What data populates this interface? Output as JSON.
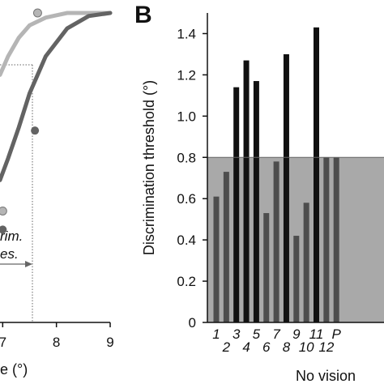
{
  "chart_data": [
    {
      "type": "line",
      "panel_label": "",
      "xlabel": "e (°)",
      "x_ticks": [
        "7",
        "8",
        "9"
      ],
      "xlim": [
        6.95,
        9
      ],
      "ylim": [
        0,
        1
      ],
      "annotation_lines": [
        "rim.",
        "es."
      ],
      "series": [
        {
          "color": "#b5b5b5",
          "curve": [
            [
              6.95,
              0.8
            ],
            [
              7.1,
              0.86
            ],
            [
              7.3,
              0.92
            ],
            [
              7.5,
              0.96
            ],
            [
              7.8,
              0.985
            ],
            [
              8.2,
              1.0
            ],
            [
              9.0,
              1.0
            ]
          ],
          "points": [
            [
              7.0,
              0.36
            ],
            [
              7.65,
              1.0
            ]
          ]
        },
        {
          "color": "#636363",
          "curve": [
            [
              6.95,
              0.46
            ],
            [
              7.1,
              0.53
            ],
            [
              7.3,
              0.63
            ],
            [
              7.5,
              0.74
            ],
            [
              7.8,
              0.86
            ],
            [
              8.2,
              0.95
            ],
            [
              8.6,
              0.99
            ],
            [
              9.0,
              1.0
            ]
          ],
          "points": [
            [
              7.0,
              0.3
            ],
            [
              7.6,
              0.62
            ]
          ]
        }
      ]
    },
    {
      "type": "bar",
      "panel_label": "B",
      "ylabel": "Discrimination threshold (°)",
      "xlabel": "No vision",
      "ylim": [
        0,
        1.5
      ],
      "y_ticks": [
        "0",
        "0.2",
        "0.4",
        "0.6",
        "0.8",
        "1.0",
        "1.2",
        "1.4"
      ],
      "shaded_threshold": 0.8,
      "categories": [
        "1",
        "2",
        "3",
        "4",
        "5",
        "6",
        "7",
        "8",
        "9",
        "10",
        "11",
        "12",
        "P"
      ],
      "category_labels": [
        "1",
        "2",
        "3",
        "4",
        "5",
        "6",
        "7",
        "8",
        "9",
        "10",
        "11",
        "12",
        "P"
      ],
      "values": [
        0.61,
        0.73,
        1.14,
        1.27,
        1.17,
        0.53,
        0.78,
        1.3,
        0.42,
        0.58,
        1.43,
        0.8,
        0.8
      ],
      "bar_colors": {
        "low": "#4d4d4d",
        "high": "#111111"
      },
      "shade_color": "#a9a9a9"
    }
  ]
}
